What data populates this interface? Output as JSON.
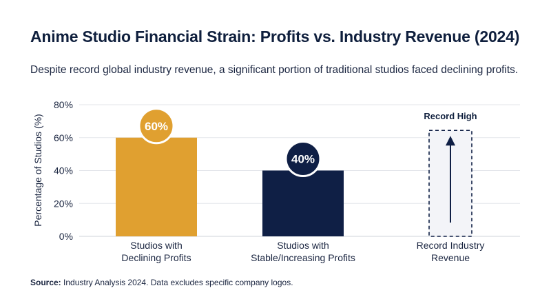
{
  "title": "Anime Studio Financial Strain: Profits vs. Industry Revenue (2024)",
  "subtitle": "Despite record global industry revenue, a significant portion of traditional studios faced declining profits.",
  "source_label": "Source:",
  "source_text": "Industry Analysis 2024. Data excludes specific company logos.",
  "colors": {
    "declining": "#e0a030",
    "stable": "#0f1f45",
    "revenue_box_fill": "#f3f4f8",
    "revenue_box_stroke": "#0f1f45",
    "grid": "#e3e5ea"
  },
  "chart_data": {
    "type": "bar",
    "ylabel": "Percentage of Studios (%)",
    "ylim": [
      0,
      80
    ],
    "yticks": [
      0,
      20,
      40,
      60,
      80
    ],
    "ytick_labels": [
      "0%",
      "20%",
      "40%",
      "60%",
      "80%"
    ],
    "grid": true,
    "categories": [
      [
        "Studios with",
        "Declining Profits"
      ],
      [
        "Studios with",
        "Stable/Increasing Profits"
      ],
      [
        "Record Industry",
        "Revenue"
      ]
    ],
    "values": [
      60,
      40,
      null
    ],
    "data_labels": [
      "60%",
      "40%",
      ""
    ],
    "annotation": {
      "category_index": 2,
      "text": "Record High",
      "icon": "up-arrow-icon"
    }
  }
}
